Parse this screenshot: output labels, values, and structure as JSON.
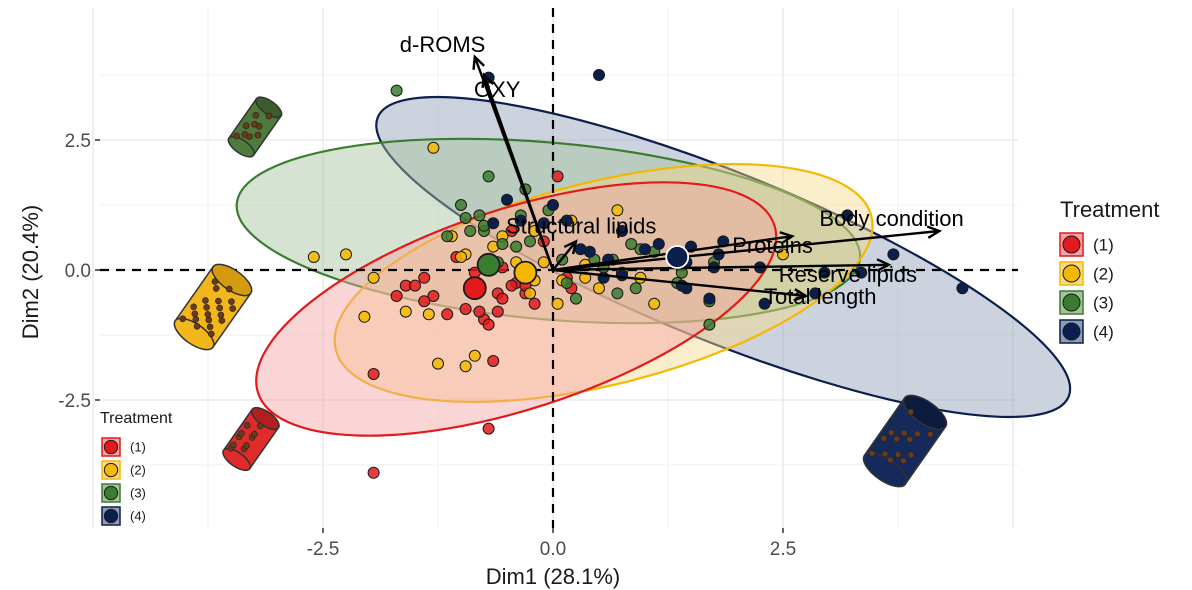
{
  "chart_data": {
    "type": "scatter",
    "subtype": "pca-biplot",
    "xlabel": "Dim1 (28.1%)",
    "ylabel": "Dim2 (20.4%)",
    "xlim": [
      -4.8,
      5.2
    ],
    "ylim": [
      -4.8,
      4.3
    ],
    "x_ticks": [
      -2.5,
      0.0,
      2.5
    ],
    "x_tick_labels": [
      "-2.5",
      "0.0",
      "2.5"
    ],
    "y_ticks": [
      -2.5,
      0.0,
      2.5
    ],
    "y_tick_labels": [
      "-2.5",
      "0.0",
      "2.5"
    ],
    "grid": true,
    "reference_lines": "dashed lines at x=0 and y=0",
    "legend": {
      "title": "Treatment",
      "placement": "right",
      "entries": [
        "(1)",
        "(2)",
        "(3)",
        "(4)"
      ]
    },
    "legend_inset": {
      "title": "Treatment",
      "placement": "bottom-left",
      "entries": [
        "(1)",
        "(2)",
        "(3)",
        "(4)"
      ]
    },
    "groups": [
      {
        "name": "(1)",
        "color": "#e31a1c",
        "fill": "#f4a2a2",
        "centroid": [
          -0.85,
          -0.35
        ],
        "ellipse": {
          "cx": -0.4,
          "cy": -0.75,
          "rx": 2.95,
          "ry": 1.92,
          "angle_deg": 18
        },
        "points": [
          [
            -1.95,
            -2.0
          ],
          [
            -0.65,
            -1.75
          ],
          [
            -1.7,
            -0.5
          ],
          [
            -1.6,
            -0.3
          ],
          [
            -1.3,
            -0.5
          ],
          [
            -0.95,
            -0.75
          ],
          [
            -0.75,
            -0.95
          ],
          [
            -0.7,
            -1.05
          ],
          [
            -0.85,
            -0.05
          ],
          [
            -0.6,
            -0.45
          ],
          [
            -0.4,
            -0.25
          ],
          [
            -0.3,
            -0.45
          ],
          [
            -0.55,
            -0.55
          ],
          [
            -1.05,
            0.25
          ],
          [
            -1.5,
            -0.3
          ],
          [
            -0.2,
            -0.65
          ],
          [
            -1.15,
            -0.85
          ],
          [
            -0.7,
            -3.05
          ],
          [
            -1.95,
            -3.9
          ],
          [
            -0.8,
            -0.8
          ],
          [
            -0.6,
            -0.8
          ],
          [
            -0.45,
            -0.3
          ],
          [
            -0.55,
            0.05
          ],
          [
            -0.25,
            -0.1
          ],
          [
            -0.3,
            -0.3
          ],
          [
            -1.4,
            -0.6
          ],
          [
            -1.4,
            -0.15
          ],
          [
            -0.45,
            0.75
          ],
          [
            0.05,
            1.8
          ],
          [
            -0.1,
            0.55
          ],
          [
            0.2,
            -0.35
          ],
          [
            0.15,
            -0.15
          ]
        ]
      },
      {
        "name": "(2)",
        "color": "#f5b800",
        "fill": "#f7d98a",
        "centroid": [
          -0.3,
          -0.05
        ],
        "ellipse": {
          "cx": 0.55,
          "cy": -0.25,
          "rx": 3.0,
          "ry": 1.95,
          "angle_deg": 14
        },
        "points": [
          [
            -1.3,
            2.35
          ],
          [
            -2.6,
            0.25
          ],
          [
            -2.25,
            0.3
          ],
          [
            -1.1,
            0.65
          ],
          [
            -0.95,
            0.3
          ],
          [
            -2.05,
            -0.9
          ],
          [
            -1.6,
            -0.8
          ],
          [
            -1.35,
            -0.85
          ],
          [
            -0.25,
            -0.45
          ],
          [
            -0.4,
            0.15
          ],
          [
            -0.2,
            -0.2
          ],
          [
            0.2,
            0.95
          ],
          [
            0.7,
            1.15
          ],
          [
            0.95,
            -0.15
          ],
          [
            1.1,
            -0.65
          ],
          [
            0.05,
            -0.65
          ],
          [
            0.35,
            -0.15
          ],
          [
            0.5,
            -0.35
          ],
          [
            2.5,
            0.3
          ],
          [
            0.35,
            0.1
          ],
          [
            -0.65,
            0.45
          ],
          [
            -0.55,
            0.65
          ],
          [
            -0.2,
            0.75
          ],
          [
            -0.1,
            0.15
          ],
          [
            0.75,
            -0.05
          ],
          [
            -1.25,
            -1.8
          ],
          [
            -0.95,
            -1.85
          ],
          [
            -1.95,
            -0.15
          ],
          [
            -0.85,
            -1.65
          ],
          [
            -1.0,
            0.25
          ],
          [
            0.1,
            -0.2
          ]
        ]
      },
      {
        "name": "(3)",
        "color": "#3a7d2e",
        "fill": "#a3c19b",
        "centroid": [
          -0.7,
          0.1
        ],
        "ellipse": {
          "cx": -0.05,
          "cy": 0.75,
          "rx": 3.4,
          "ry": 1.7,
          "angle_deg": -5
        },
        "points": [
          [
            -1.7,
            3.45
          ],
          [
            -0.8,
            1.05
          ],
          [
            -0.7,
            1.8
          ],
          [
            -0.75,
            0.75
          ],
          [
            -0.55,
            0.5
          ],
          [
            -0.9,
            0.75
          ],
          [
            -1.15,
            0.65
          ],
          [
            -1.0,
            1.25
          ],
          [
            -0.95,
            1.0
          ],
          [
            -0.3,
            1.55
          ],
          [
            -0.05,
            1.15
          ],
          [
            0.45,
            0.2
          ],
          [
            0.55,
            0.05
          ],
          [
            0.95,
            0.4
          ],
          [
            0.85,
            0.5
          ],
          [
            0.65,
            0.2
          ],
          [
            1.4,
            -0.05
          ],
          [
            1.7,
            -0.6
          ],
          [
            1.75,
            0.15
          ],
          [
            1.7,
            -1.05
          ],
          [
            -0.4,
            0.45
          ],
          [
            -0.25,
            0.55
          ],
          [
            0.1,
            0.2
          ],
          [
            0.7,
            -0.45
          ],
          [
            0.9,
            -0.35
          ],
          [
            0.25,
            -0.55
          ],
          [
            -0.6,
            0.15
          ],
          [
            -0.75,
            0.85
          ],
          [
            -0.35,
            1.05
          ],
          [
            0.15,
            -0.25
          ],
          [
            1.1,
            0.35
          ],
          [
            1.35,
            -0.25
          ]
        ]
      },
      {
        "name": "(4)",
        "color": "#0b1f4d",
        "fill": "#8d9db9",
        "centroid": [
          1.35,
          0.25
        ],
        "ellipse": {
          "cx": 1.85,
          "cy": 0.25,
          "rx": 4.05,
          "ry": 1.62,
          "angle_deg": -22
        },
        "points": [
          [
            -0.7,
            3.7
          ],
          [
            0.5,
            3.75
          ],
          [
            3.2,
            1.05
          ],
          [
            4.45,
            -0.35
          ],
          [
            3.7,
            0.3
          ],
          [
            3.35,
            -0.05
          ],
          [
            2.95,
            -0.05
          ],
          [
            2.85,
            -0.45
          ],
          [
            2.25,
            0.05
          ],
          [
            1.85,
            0.55
          ],
          [
            1.75,
            0.05
          ],
          [
            1.45,
            0.15
          ],
          [
            1.15,
            0.5
          ],
          [
            1.5,
            0.45
          ],
          [
            1.8,
            0.3
          ],
          [
            1.45,
            -0.35
          ],
          [
            1.4,
            -0.3
          ],
          [
            1.7,
            -0.55
          ],
          [
            0.55,
            -0.15
          ],
          [
            0.6,
            0.2
          ],
          [
            0.75,
            -0.1
          ],
          [
            -0.65,
            0.9
          ],
          [
            -0.35,
            0.95
          ],
          [
            -0.1,
            0.9
          ],
          [
            0.0,
            1.25
          ],
          [
            0.15,
            0.95
          ],
          [
            0.4,
            0.35
          ],
          [
            0.3,
            0.4
          ],
          [
            0.75,
            0.75
          ],
          [
            1.0,
            0.4
          ],
          [
            2.3,
            -0.65
          ],
          [
            -0.5,
            1.35
          ]
        ]
      }
    ],
    "variables": [
      {
        "name": "d-ROMS",
        "x": -0.85,
        "y": 4.1
      },
      {
        "name": "OXY",
        "x": -0.75,
        "y": 3.75
      },
      {
        "name": "Structural lipids",
        "x": 0.25,
        "y": 0.55
      },
      {
        "name": "Proteins",
        "x": 2.6,
        "y": 0.65
      },
      {
        "name": "Body condition",
        "x": 4.2,
        "y": 0.75
      },
      {
        "name": "Reserve lipids",
        "x": 3.65,
        "y": 0.1
      },
      {
        "name": "Total length",
        "x": 2.75,
        "y": -0.5
      }
    ]
  }
}
